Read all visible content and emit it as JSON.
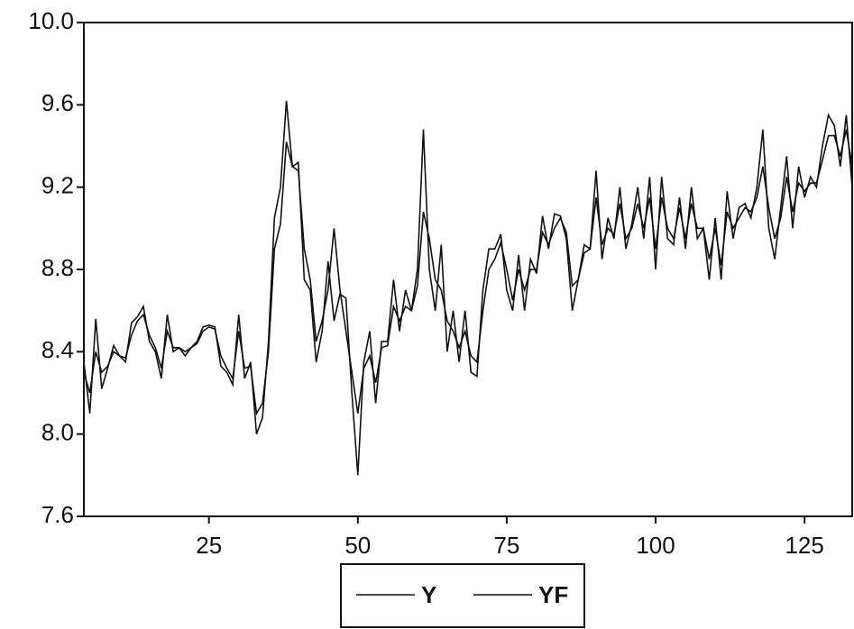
{
  "chart_data": {
    "type": "line",
    "x": [
      4,
      5,
      6,
      7,
      8,
      9,
      10,
      11,
      12,
      13,
      14,
      15,
      16,
      17,
      18,
      19,
      20,
      21,
      22,
      23,
      24,
      25,
      26,
      27,
      28,
      29,
      30,
      31,
      32,
      33,
      34,
      35,
      36,
      37,
      38,
      39,
      40,
      41,
      42,
      43,
      44,
      45,
      46,
      47,
      48,
      49,
      50,
      51,
      52,
      53,
      54,
      55,
      56,
      57,
      58,
      59,
      60,
      61,
      62,
      63,
      64,
      65,
      66,
      67,
      68,
      69,
      70,
      71,
      72,
      73,
      74,
      75,
      76,
      77,
      78,
      79,
      80,
      81,
      82,
      83,
      84,
      85,
      86,
      87,
      88,
      89,
      90,
      91,
      92,
      93,
      94,
      95,
      96,
      97,
      98,
      99,
      100,
      101,
      102,
      103,
      104,
      105,
      106,
      107,
      108,
      109,
      110,
      111,
      112,
      113,
      114,
      115,
      116,
      117,
      118,
      119,
      120,
      121,
      122,
      123,
      124,
      125,
      126,
      127,
      128,
      129,
      130,
      131,
      132,
      133
    ],
    "series": [
      {
        "name": "Y",
        "color": "#111111",
        "values": [
          8.35,
          8.1,
          8.56,
          8.22,
          8.32,
          8.43,
          8.38,
          8.35,
          8.54,
          8.57,
          8.62,
          8.45,
          8.4,
          8.27,
          8.58,
          8.4,
          8.42,
          8.38,
          8.42,
          8.45,
          8.52,
          8.53,
          8.52,
          8.33,
          8.3,
          8.24,
          8.58,
          8.27,
          8.35,
          8.0,
          8.08,
          8.45,
          9.05,
          9.2,
          9.62,
          9.3,
          9.32,
          8.75,
          8.7,
          8.35,
          8.5,
          8.84,
          8.55,
          8.68,
          8.66,
          8.2,
          7.8,
          8.35,
          8.5,
          8.15,
          8.45,
          8.45,
          8.75,
          8.5,
          8.7,
          8.6,
          8.8,
          9.48,
          8.8,
          8.6,
          8.92,
          8.4,
          8.6,
          8.35,
          8.6,
          8.3,
          8.28,
          8.7,
          8.9,
          8.9,
          8.97,
          8.7,
          8.6,
          8.87,
          8.6,
          8.85,
          8.78,
          9.06,
          8.9,
          9.07,
          9.06,
          8.95,
          8.6,
          8.75,
          8.92,
          8.9,
          9.28,
          8.85,
          9.05,
          8.95,
          9.2,
          8.9,
          9.02,
          9.2,
          8.95,
          9.25,
          8.8,
          9.25,
          8.95,
          8.92,
          9.15,
          8.9,
          9.2,
          8.95,
          9.0,
          8.75,
          9.05,
          8.75,
          9.18,
          8.95,
          9.1,
          9.12,
          9.05,
          9.2,
          9.48,
          9.0,
          8.85,
          9.1,
          9.35,
          9.0,
          9.3,
          9.15,
          9.25,
          9.2,
          9.4,
          9.55,
          9.5,
          9.3,
          9.55,
          9.2
        ]
      },
      {
        "name": "YF",
        "color": "#111111",
        "values": [
          8.3,
          8.2,
          8.4,
          8.3,
          8.33,
          8.4,
          8.38,
          8.37,
          8.48,
          8.55,
          8.58,
          8.48,
          8.42,
          8.32,
          8.5,
          8.42,
          8.42,
          8.4,
          8.42,
          8.44,
          8.5,
          8.52,
          8.51,
          8.38,
          8.32,
          8.27,
          8.5,
          8.32,
          8.33,
          8.1,
          8.15,
          8.4,
          8.9,
          9.02,
          9.42,
          9.3,
          9.28,
          8.9,
          8.75,
          8.45,
          8.55,
          8.7,
          9.0,
          8.7,
          8.5,
          8.3,
          8.1,
          8.32,
          8.38,
          8.25,
          8.42,
          8.43,
          8.62,
          8.55,
          8.62,
          8.6,
          8.72,
          9.08,
          8.95,
          8.75,
          8.7,
          8.55,
          8.5,
          8.42,
          8.5,
          8.38,
          8.35,
          8.6,
          8.8,
          8.85,
          8.93,
          8.8,
          8.65,
          8.8,
          8.7,
          8.8,
          8.8,
          8.98,
          8.92,
          9.0,
          9.05,
          8.98,
          8.72,
          8.75,
          8.88,
          8.9,
          9.15,
          8.92,
          9.0,
          8.97,
          9.12,
          8.95,
          9.0,
          9.12,
          9.0,
          9.15,
          8.9,
          9.15,
          9.0,
          8.95,
          9.1,
          8.95,
          9.12,
          9.0,
          9.0,
          8.85,
          9.0,
          8.82,
          9.08,
          9.0,
          9.05,
          9.1,
          9.08,
          9.15,
          9.3,
          9.1,
          8.95,
          9.05,
          9.25,
          9.08,
          9.22,
          9.18,
          9.22,
          9.22,
          9.33,
          9.45,
          9.45,
          9.35,
          9.48,
          9.3
        ]
      }
    ],
    "xlim": [
      4,
      133
    ],
    "xticks": [
      25,
      50,
      75,
      100,
      125
    ],
    "ylim": [
      7.6,
      10.0
    ],
    "yticks": [
      {
        "value": 7.6,
        "label": "7.6"
      },
      {
        "value": 8.0,
        "label": "8.0"
      },
      8.4,
      8.8,
      9.2,
      9.6,
      {
        "value": 10.0,
        "label": "10.0"
      }
    ]
  }
}
